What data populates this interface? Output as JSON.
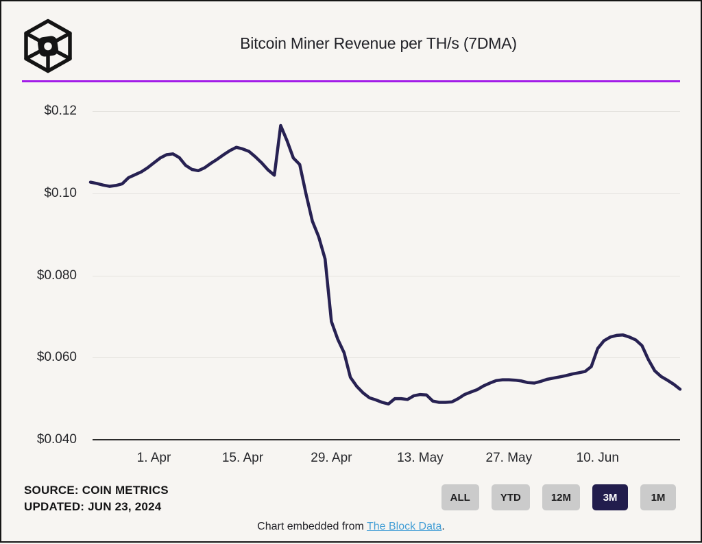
{
  "header": {
    "title": "Bitcoin Miner Revenue per TH/s (7DMA)",
    "logo_name": "the-block-logo",
    "accent_color": "#a21ce8"
  },
  "chart_data": {
    "type": "line",
    "title": "Bitcoin Miner Revenue per TH/s (7DMA)",
    "line_color": "#272152",
    "grid": "horizontal",
    "ylim": [
      0.04,
      0.124
    ],
    "x_domain": [
      "2024-03-22",
      "2024-06-23"
    ],
    "y_ticks": [
      {
        "label": "$0.12",
        "value": 0.12,
        "axis": false
      },
      {
        "label": "$0.10",
        "value": 0.1,
        "axis": false
      },
      {
        "label": "$0.080",
        "value": 0.08,
        "axis": false
      },
      {
        "label": "$0.060",
        "value": 0.06,
        "axis": false
      },
      {
        "label": "$0.040",
        "value": 0.04,
        "axis": true
      }
    ],
    "x_ticks": [
      {
        "label": "1. Apr",
        "date": "2024-04-01"
      },
      {
        "label": "15. Apr",
        "date": "2024-04-15"
      },
      {
        "label": "29. Apr",
        "date": "2024-04-29"
      },
      {
        "label": "13. May",
        "date": "2024-05-13"
      },
      {
        "label": "27. May",
        "date": "2024-05-27"
      },
      {
        "label": "10. Jun",
        "date": "2024-06-10"
      }
    ],
    "points": [
      [
        "2024-03-22",
        0.1027
      ],
      [
        "2024-03-23",
        0.1024
      ],
      [
        "2024-03-24",
        0.102
      ],
      [
        "2024-03-25",
        0.1017
      ],
      [
        "2024-03-26",
        0.1019
      ],
      [
        "2024-03-27",
        0.1023
      ],
      [
        "2024-03-28",
        0.1038
      ],
      [
        "2024-03-29",
        0.1045
      ],
      [
        "2024-03-30",
        0.1052
      ],
      [
        "2024-03-31",
        0.1062
      ],
      [
        "2024-04-01",
        0.1074
      ],
      [
        "2024-04-02",
        0.1086
      ],
      [
        "2024-04-03",
        0.1094
      ],
      [
        "2024-04-04",
        0.1096
      ],
      [
        "2024-04-05",
        0.1087
      ],
      [
        "2024-04-06",
        0.1068
      ],
      [
        "2024-04-07",
        0.1058
      ],
      [
        "2024-04-08",
        0.1055
      ],
      [
        "2024-04-09",
        0.1062
      ],
      [
        "2024-04-10",
        0.1073
      ],
      [
        "2024-04-11",
        0.1083
      ],
      [
        "2024-04-12",
        0.1094
      ],
      [
        "2024-04-13",
        0.1104
      ],
      [
        "2024-04-14",
        0.1112
      ],
      [
        "2024-04-15",
        0.1108
      ],
      [
        "2024-04-16",
        0.1102
      ],
      [
        "2024-04-17",
        0.1089
      ],
      [
        "2024-04-18",
        0.1074
      ],
      [
        "2024-04-19",
        0.1057
      ],
      [
        "2024-04-20",
        0.1044
      ],
      [
        "2024-04-21",
        0.1165
      ],
      [
        "2024-04-22",
        0.1128
      ],
      [
        "2024-04-23",
        0.1086
      ],
      [
        "2024-04-24",
        0.107
      ],
      [
        "2024-04-25",
        0.0998
      ],
      [
        "2024-04-26",
        0.0932
      ],
      [
        "2024-04-27",
        0.0894
      ],
      [
        "2024-04-28",
        0.084
      ],
      [
        "2024-04-29",
        0.0688
      ],
      [
        "2024-04-30",
        0.0645
      ],
      [
        "2024-05-01",
        0.0612
      ],
      [
        "2024-05-02",
        0.0552
      ],
      [
        "2024-05-03",
        0.053
      ],
      [
        "2024-05-04",
        0.0514
      ],
      [
        "2024-05-05",
        0.0502
      ],
      [
        "2024-05-06",
        0.0497
      ],
      [
        "2024-05-07",
        0.0491
      ],
      [
        "2024-05-08",
        0.0487
      ],
      [
        "2024-05-09",
        0.05
      ],
      [
        "2024-05-10",
        0.05
      ],
      [
        "2024-05-11",
        0.0498
      ],
      [
        "2024-05-12",
        0.0507
      ],
      [
        "2024-05-13",
        0.051
      ],
      [
        "2024-05-14",
        0.0509
      ],
      [
        "2024-05-15",
        0.0494
      ],
      [
        "2024-05-16",
        0.0491
      ],
      [
        "2024-05-17",
        0.0491
      ],
      [
        "2024-05-18",
        0.0492
      ],
      [
        "2024-05-19",
        0.05
      ],
      [
        "2024-05-20",
        0.051
      ],
      [
        "2024-05-21",
        0.0516
      ],
      [
        "2024-05-22",
        0.0522
      ],
      [
        "2024-05-23",
        0.0531
      ],
      [
        "2024-05-24",
        0.0538
      ],
      [
        "2024-05-25",
        0.0544
      ],
      [
        "2024-05-26",
        0.0546
      ],
      [
        "2024-05-27",
        0.0546
      ],
      [
        "2024-05-28",
        0.0545
      ],
      [
        "2024-05-29",
        0.0543
      ],
      [
        "2024-05-30",
        0.0539
      ],
      [
        "2024-05-31",
        0.0538
      ],
      [
        "2024-06-01",
        0.0542
      ],
      [
        "2024-06-02",
        0.0547
      ],
      [
        "2024-06-03",
        0.055
      ],
      [
        "2024-06-04",
        0.0553
      ],
      [
        "2024-06-05",
        0.0556
      ],
      [
        "2024-06-06",
        0.056
      ],
      [
        "2024-06-07",
        0.0563
      ],
      [
        "2024-06-08",
        0.0566
      ],
      [
        "2024-06-09",
        0.0578
      ],
      [
        "2024-06-10",
        0.0622
      ],
      [
        "2024-06-11",
        0.0641
      ],
      [
        "2024-06-12",
        0.065
      ],
      [
        "2024-06-13",
        0.0654
      ],
      [
        "2024-06-14",
        0.0655
      ],
      [
        "2024-06-15",
        0.065
      ],
      [
        "2024-06-16",
        0.0643
      ],
      [
        "2024-06-17",
        0.0629
      ],
      [
        "2024-06-18",
        0.0595
      ],
      [
        "2024-06-19",
        0.0568
      ],
      [
        "2024-06-20",
        0.0554
      ],
      [
        "2024-06-21",
        0.0545
      ],
      [
        "2024-06-22",
        0.0535
      ],
      [
        "2024-06-23",
        0.0523
      ]
    ]
  },
  "footer": {
    "source": "SOURCE: COIN METRICS",
    "updated": "UPDATED: JUN 23, 2024",
    "range_buttons": [
      {
        "label": "ALL",
        "active": false
      },
      {
        "label": "YTD",
        "active": false
      },
      {
        "label": "12M",
        "active": false
      },
      {
        "label": "3M",
        "active": true
      },
      {
        "label": "1M",
        "active": false
      }
    ],
    "active_button_color": "#221d4d",
    "button_color": "#cbcbcb",
    "embed_prefix": "Chart embedded from ",
    "embed_link_text": "The Block Data",
    "embed_suffix": ".",
    "link_color": "#459fd6"
  }
}
